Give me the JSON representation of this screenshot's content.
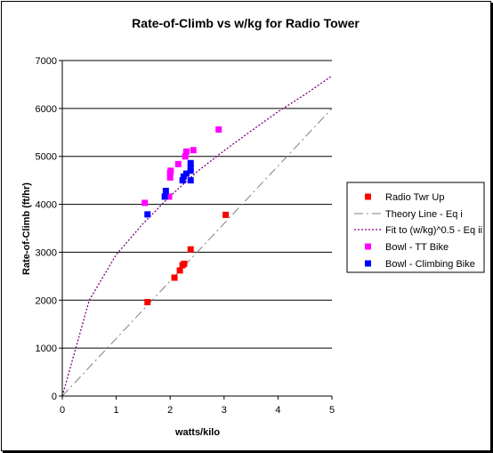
{
  "chart_data": {
    "type": "scatter",
    "title": "Rate-of-Climb vs w/kg for Radio Tower",
    "xlabel": "watts/kilo",
    "ylabel": "Rate-of-Climb (ft/hr)",
    "xlim": [
      0,
      5
    ],
    "ylim": [
      0,
      7000
    ],
    "x_ticks": [
      "0",
      "1",
      "2",
      "3",
      "4",
      "5"
    ],
    "y_ticks": [
      "0",
      "1000",
      "2000",
      "3000",
      "4000",
      "5000",
      "6000",
      "7000"
    ],
    "grid": "horizontal",
    "legend_position": "right",
    "series": [
      {
        "name": "Radio Twr Up",
        "kind": "markers",
        "color": "#ff0000",
        "points": [
          [
            1.58,
            1960
          ],
          [
            2.08,
            2470
          ],
          [
            2.18,
            2620
          ],
          [
            2.23,
            2730
          ],
          [
            2.26,
            2760
          ],
          [
            2.38,
            3060
          ],
          [
            3.03,
            3780
          ]
        ]
      },
      {
        "name": "Theory Line - Eq i",
        "kind": "dash-dot-line",
        "color": "#808080",
        "points": [
          [
            0,
            0
          ],
          [
            5,
            6000
          ]
        ]
      },
      {
        "name": "Fit to (w/kg)^0.5 - Eq ii",
        "kind": "dotted-line",
        "color": "#800080",
        "points": [
          [
            0,
            0
          ],
          [
            0.5,
            2000
          ],
          [
            1,
            2950
          ],
          [
            1.5,
            3600
          ],
          [
            2,
            4170
          ],
          [
            2.5,
            4680
          ],
          [
            3,
            5120
          ],
          [
            3.5,
            5530
          ],
          [
            4,
            5930
          ],
          [
            4.5,
            6290
          ],
          [
            5,
            6680
          ]
        ]
      },
      {
        "name": "Bowl - TT Bike",
        "kind": "markers",
        "color": "#ff00ff",
        "points": [
          [
            1.53,
            4030
          ],
          [
            1.98,
            4160
          ],
          [
            2.0,
            4560
          ],
          [
            2.0,
            4650
          ],
          [
            2.01,
            4700
          ],
          [
            2.15,
            4840
          ],
          [
            2.28,
            5000
          ],
          [
            2.3,
            5100
          ],
          [
            2.43,
            5130
          ],
          [
            2.9,
            5560
          ]
        ]
      },
      {
        "name": "Bowl - Climbing Bike",
        "kind": "markers",
        "color": "#0000ff",
        "points": [
          [
            1.58,
            3790
          ],
          [
            1.9,
            4160
          ],
          [
            1.92,
            4280
          ],
          [
            2.23,
            4500
          ],
          [
            2.25,
            4580
          ],
          [
            2.3,
            4640
          ],
          [
            2.38,
            4500
          ],
          [
            2.38,
            4700
          ],
          [
            2.38,
            4760
          ],
          [
            2.38,
            4860
          ]
        ]
      }
    ]
  }
}
